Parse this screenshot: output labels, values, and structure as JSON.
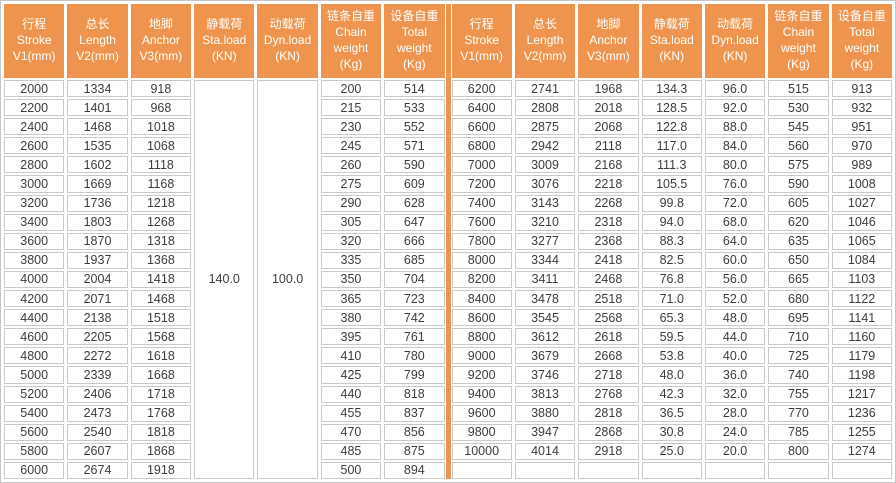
{
  "colors": {
    "header_bg": "#EF944E",
    "header_text": "#FFFFFF",
    "divider": "#EF944E",
    "grid_line": "#C9C9C9",
    "cell_bg": "#FFFFFF",
    "cell_text": "#3C3C3C",
    "outer_border": "#C6C6C6"
  },
  "table": {
    "columns": [
      {
        "id": "stroke",
        "label": "行程\nStroke\nV1(mm)"
      },
      {
        "id": "length",
        "label": "总长\nLength\nV2(mm)"
      },
      {
        "id": "anchor",
        "label": "地脚\nAnchor\nV3(mm)"
      },
      {
        "id": "sta",
        "label": "静载荷\nSta.load\n(KN)"
      },
      {
        "id": "dyn",
        "label": "动载荷\nDyn.load\n(KN)"
      },
      {
        "id": "chain",
        "label": "链条自重\nChain\nweight\n(Kg)"
      },
      {
        "id": "total",
        "label": "设备自重\nTotal\nweight\n(Kg)"
      }
    ],
    "left": {
      "merged": {
        "sta": "140.0",
        "dyn": "100.0"
      },
      "rows": [
        {
          "stroke": "2000",
          "length": "1334",
          "anchor": "918",
          "chain": "200",
          "total": "514"
        },
        {
          "stroke": "2200",
          "length": "1401",
          "anchor": "968",
          "chain": "215",
          "total": "533"
        },
        {
          "stroke": "2400",
          "length": "1468",
          "anchor": "1018",
          "chain": "230",
          "total": "552"
        },
        {
          "stroke": "2600",
          "length": "1535",
          "anchor": "1068",
          "chain": "245",
          "total": "571"
        },
        {
          "stroke": "2800",
          "length": "1602",
          "anchor": "1118",
          "chain": "260",
          "total": "590"
        },
        {
          "stroke": "3000",
          "length": "1669",
          "anchor": "1168",
          "chain": "275",
          "total": "609"
        },
        {
          "stroke": "3200",
          "length": "1736",
          "anchor": "1218",
          "chain": "290",
          "total": "628"
        },
        {
          "stroke": "3400",
          "length": "1803",
          "anchor": "1268",
          "chain": "305",
          "total": "647"
        },
        {
          "stroke": "3600",
          "length": "1870",
          "anchor": "1318",
          "chain": "320",
          "total": "666"
        },
        {
          "stroke": "3800",
          "length": "1937",
          "anchor": "1368",
          "chain": "335",
          "total": "685"
        },
        {
          "stroke": "4000",
          "length": "2004",
          "anchor": "1418",
          "chain": "350",
          "total": "704"
        },
        {
          "stroke": "4200",
          "length": "2071",
          "anchor": "1468",
          "chain": "365",
          "total": "723"
        },
        {
          "stroke": "4400",
          "length": "2138",
          "anchor": "1518",
          "chain": "380",
          "total": "742"
        },
        {
          "stroke": "4600",
          "length": "2205",
          "anchor": "1568",
          "chain": "395",
          "total": "761"
        },
        {
          "stroke": "4800",
          "length": "2272",
          "anchor": "1618",
          "chain": "410",
          "total": "780"
        },
        {
          "stroke": "5000",
          "length": "2339",
          "anchor": "1668",
          "chain": "425",
          "total": "799"
        },
        {
          "stroke": "5200",
          "length": "2406",
          "anchor": "1718",
          "chain": "440",
          "total": "818"
        },
        {
          "stroke": "5400",
          "length": "2473",
          "anchor": "1768",
          "chain": "455",
          "total": "837"
        },
        {
          "stroke": "5600",
          "length": "2540",
          "anchor": "1818",
          "chain": "470",
          "total": "856"
        },
        {
          "stroke": "5800",
          "length": "2607",
          "anchor": "1868",
          "chain": "485",
          "total": "875"
        },
        {
          "stroke": "6000",
          "length": "2674",
          "anchor": "1918",
          "chain": "500",
          "total": "894"
        }
      ]
    },
    "right": {
      "rows": [
        {
          "stroke": "6200",
          "length": "2741",
          "anchor": "1968",
          "sta": "134.3",
          "dyn": "96.0",
          "chain": "515",
          "total": "913"
        },
        {
          "stroke": "6400",
          "length": "2808",
          "anchor": "2018",
          "sta": "128.5",
          "dyn": "92.0",
          "chain": "530",
          "total": "932"
        },
        {
          "stroke": "6600",
          "length": "2875",
          "anchor": "2068",
          "sta": "122.8",
          "dyn": "88.0",
          "chain": "545",
          "total": "951"
        },
        {
          "stroke": "6800",
          "length": "2942",
          "anchor": "2118",
          "sta": "117.0",
          "dyn": "84.0",
          "chain": "560",
          "total": "970"
        },
        {
          "stroke": "7000",
          "length": "3009",
          "anchor": "2168",
          "sta": "111.3",
          "dyn": "80.0",
          "chain": "575",
          "total": "989"
        },
        {
          "stroke": "7200",
          "length": "3076",
          "anchor": "2218",
          "sta": "105.5",
          "dyn": "76.0",
          "chain": "590",
          "total": "1008"
        },
        {
          "stroke": "7400",
          "length": "3143",
          "anchor": "2268",
          "sta": "99.8",
          "dyn": "72.0",
          "chain": "605",
          "total": "1027"
        },
        {
          "stroke": "7600",
          "length": "3210",
          "anchor": "2318",
          "sta": "94.0",
          "dyn": "68.0",
          "chain": "620",
          "total": "1046"
        },
        {
          "stroke": "7800",
          "length": "3277",
          "anchor": "2368",
          "sta": "88.3",
          "dyn": "64.0",
          "chain": "635",
          "total": "1065"
        },
        {
          "stroke": "8000",
          "length": "3344",
          "anchor": "2418",
          "sta": "82.5",
          "dyn": "60.0",
          "chain": "650",
          "total": "1084"
        },
        {
          "stroke": "8200",
          "length": "3411",
          "anchor": "2468",
          "sta": "76.8",
          "dyn": "56.0",
          "chain": "665",
          "total": "1103"
        },
        {
          "stroke": "8400",
          "length": "3478",
          "anchor": "2518",
          "sta": "71.0",
          "dyn": "52.0",
          "chain": "680",
          "total": "1122"
        },
        {
          "stroke": "8600",
          "length": "3545",
          "anchor": "2568",
          "sta": "65.3",
          "dyn": "48.0",
          "chain": "695",
          "total": "1141"
        },
        {
          "stroke": "8800",
          "length": "3612",
          "anchor": "2618",
          "sta": "59.5",
          "dyn": "44.0",
          "chain": "710",
          "total": "1160"
        },
        {
          "stroke": "9000",
          "length": "3679",
          "anchor": "2668",
          "sta": "53.8",
          "dyn": "40.0",
          "chain": "725",
          "total": "1179"
        },
        {
          "stroke": "9200",
          "length": "3746",
          "anchor": "2718",
          "sta": "48.0",
          "dyn": "36.0",
          "chain": "740",
          "total": "1198"
        },
        {
          "stroke": "9400",
          "length": "3813",
          "anchor": "2768",
          "sta": "42.3",
          "dyn": "32.0",
          "chain": "755",
          "total": "1217"
        },
        {
          "stroke": "9600",
          "length": "3880",
          "anchor": "2818",
          "sta": "36.5",
          "dyn": "28.0",
          "chain": "770",
          "total": "1236"
        },
        {
          "stroke": "9800",
          "length": "3947",
          "anchor": "2868",
          "sta": "30.8",
          "dyn": "24.0",
          "chain": "785",
          "total": "1255"
        },
        {
          "stroke": "10000",
          "length": "4014",
          "anchor": "2918",
          "sta": "25.0",
          "dyn": "20.0",
          "chain": "800",
          "total": "1274"
        },
        {
          "stroke": "",
          "length": "",
          "anchor": "",
          "sta": "",
          "dyn": "",
          "chain": "",
          "total": ""
        }
      ]
    }
  }
}
